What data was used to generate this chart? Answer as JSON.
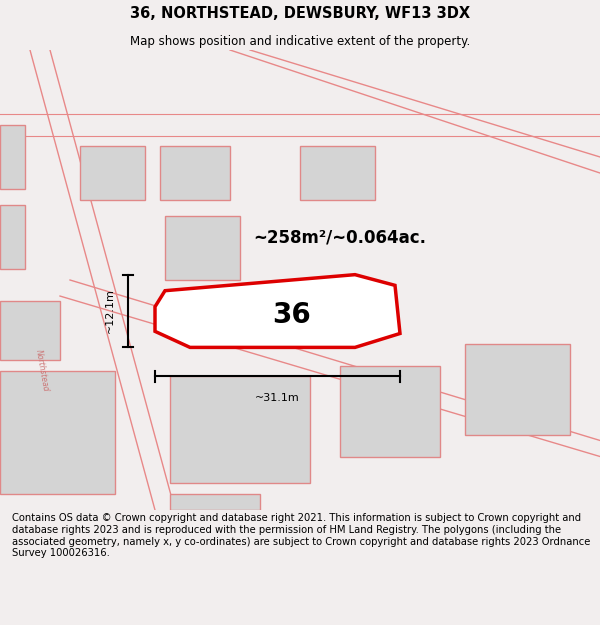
{
  "title": "36, NORTHSTEAD, DEWSBURY, WF13 3DX",
  "subtitle": "Map shows position and indicative extent of the property.",
  "footer": "Contains OS data © Crown copyright and database right 2021. This information is subject to Crown copyright and database rights 2023 and is reproduced with the permission of HM Land Registry. The polygons (including the associated geometry, namely x, y co-ordinates) are subject to Crown copyright and database rights 2023 Ordnance Survey 100026316.",
  "bg_color": "#f2eeee",
  "map_bg_color": "#ffffff",
  "title_fontsize": 10.5,
  "subtitle_fontsize": 8.5,
  "footer_fontsize": 7.2,
  "property_label": "36",
  "area_label": "~258m²/~0.064ac.",
  "width_label": "~31.1m",
  "height_label": "~12.1m",
  "road_color": "#e88888",
  "building_face": "#d4d4d4",
  "building_edge": "#e08888",
  "red_poly_color": "#dd0000",
  "northstead_label": "Northstead",
  "northstead_color": "#cc7777"
}
